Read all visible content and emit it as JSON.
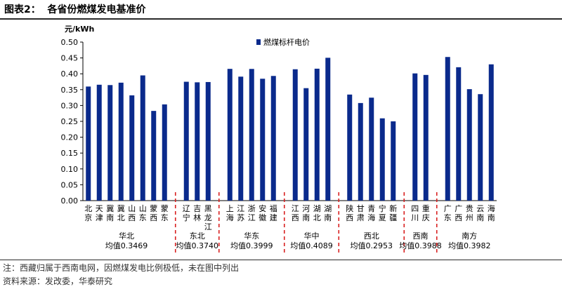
{
  "figure": {
    "title": "图表2：  各省份燃煤发电基准价",
    "note": "注：西藏归属于西南电网，因燃煤发电比例极低，未在图中列出",
    "source": "资料来源：发改委，华泰研究"
  },
  "chart_data": {
    "type": "bar",
    "ylabel": "元/kWh",
    "ylim": [
      0,
      0.5
    ],
    "yticks": [
      "0.00",
      "0.05",
      "0.10",
      "0.15",
      "0.20",
      "0.25",
      "0.30",
      "0.35",
      "0.40",
      "0.45",
      "0.50"
    ],
    "grid": false,
    "legend_position": "top-center",
    "bar_color": "#0a2a8c",
    "divider_color": "#d82020",
    "series": [
      {
        "name": "燃煤标杆电价",
        "values": [
          0.3598,
          0.3655,
          0.3644,
          0.372,
          0.332,
          0.3949,
          0.2829,
          0.3035,
          0.3749,
          0.3731,
          0.374,
          0.4155,
          0.391,
          0.4153,
          0.3844,
          0.3932,
          0.4143,
          0.3547,
          0.4161,
          0.4505,
          0.3345,
          0.3078,
          0.3247,
          0.2595,
          0.25,
          0.4012,
          0.3964,
          0.453,
          0.4207,
          0.3515,
          0.3358,
          0.4298
        ]
      }
    ],
    "categories": [
      "北京",
      "天津",
      "冀南",
      "冀北",
      "山西",
      "山东",
      "蒙西",
      "蒙东",
      "辽宁",
      "吉林",
      "黑龙江",
      "上海",
      "江苏",
      "浙江",
      "安徽",
      "福建",
      "江西",
      "河南",
      "湖北",
      "湖南",
      "陕西",
      "甘肃",
      "青海",
      "宁夏",
      "新疆",
      "四川",
      "重庆",
      "广东",
      "广西",
      "贵州",
      "云南",
      "海南"
    ],
    "groups": [
      {
        "name": "华北",
        "avg_label": "均值0.3469",
        "count": 8
      },
      {
        "name": "东北",
        "avg_label": "均值0.3740",
        "count": 3
      },
      {
        "name": "华东",
        "avg_label": "均值0.3999",
        "count": 5
      },
      {
        "name": "华中",
        "avg_label": "均值0.4089",
        "count": 4
      },
      {
        "name": "西北",
        "avg_label": "均值0.2953",
        "count": 5
      },
      {
        "name": "西南",
        "avg_label": "均值0.3988",
        "count": 2
      },
      {
        "name": "南方",
        "avg_label": "均值0.3982",
        "count": 5
      }
    ]
  }
}
